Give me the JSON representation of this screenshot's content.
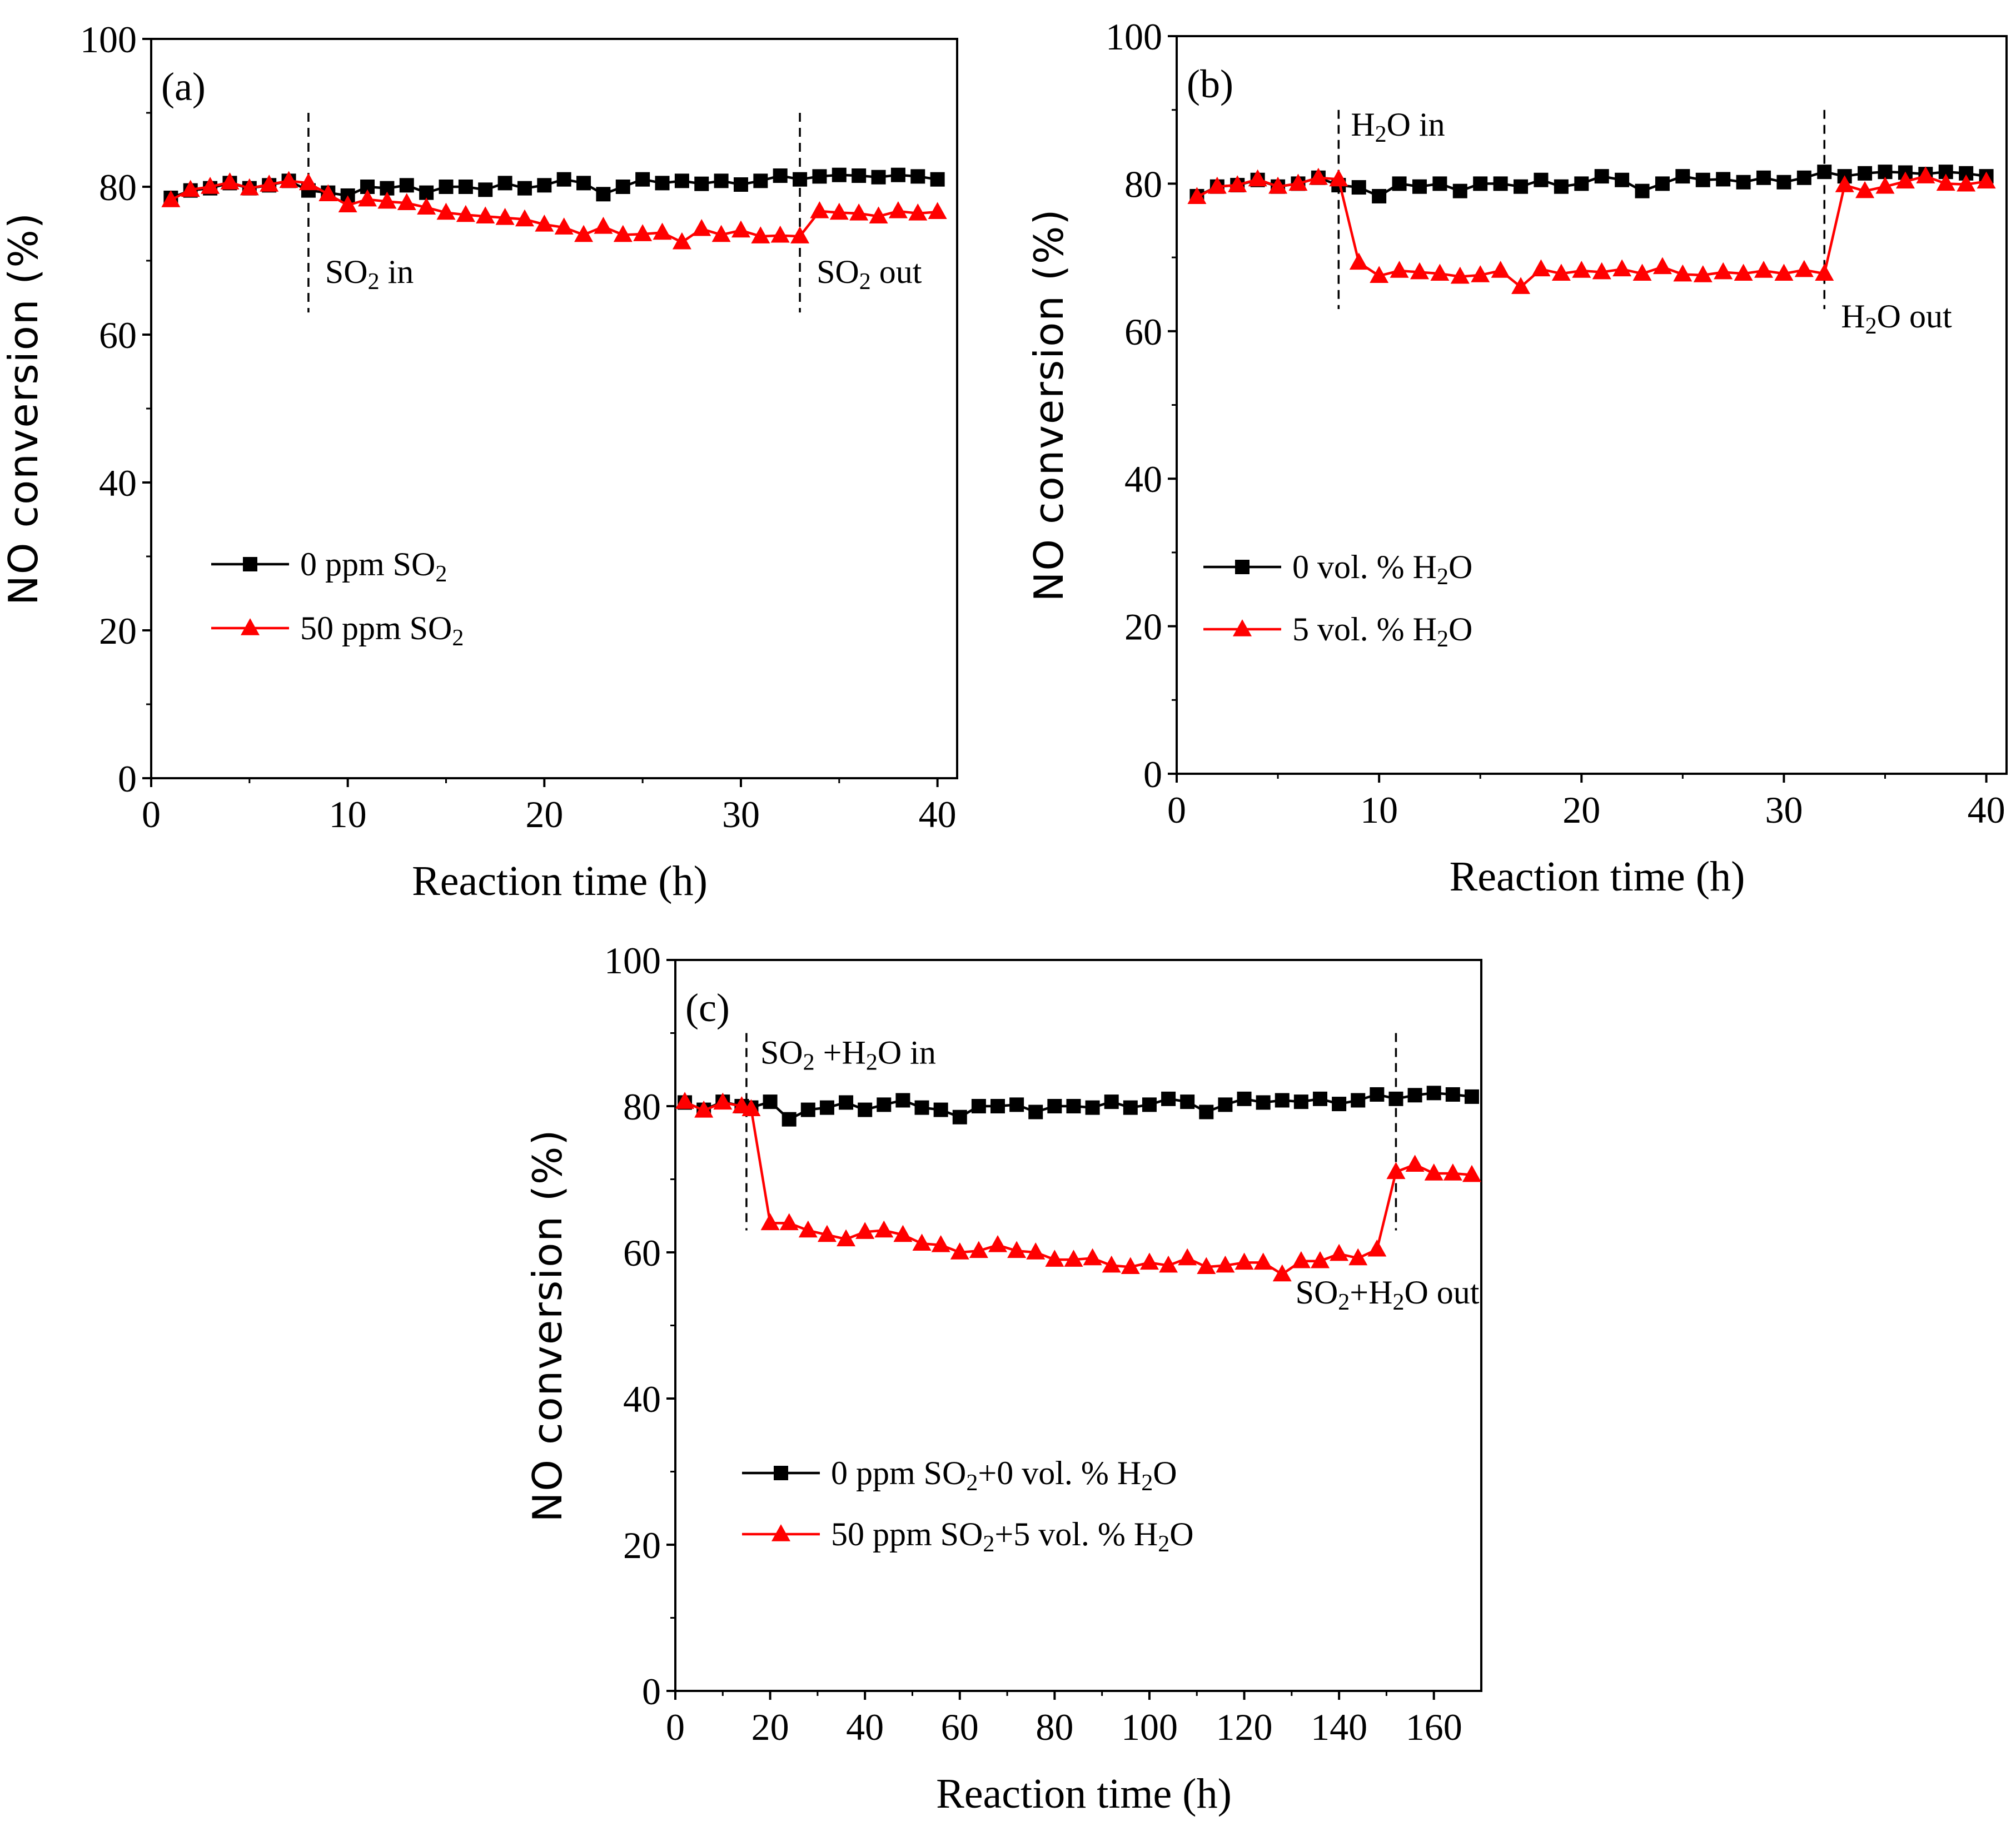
{
  "chart_data": [
    {
      "type": "line",
      "panel_label": "(a)",
      "xlabel": "Reaction time (h)",
      "ylabel": "NO conversion (%)",
      "xlim": [
        0,
        41
      ],
      "ylim": [
        0,
        100
      ],
      "xticks": [
        0,
        10,
        20,
        30,
        40
      ],
      "yticks": [
        0,
        20,
        40,
        60,
        80,
        100
      ],
      "xtick_labels": [
        "0",
        "10",
        "20",
        "30",
        "40"
      ],
      "ytick_labels": [
        "0",
        "20",
        "40",
        "60",
        "80",
        "100"
      ],
      "series": [
        {
          "name": "0 ppm SO2",
          "label_parts": [
            "0 ppm SO",
            "2",
            ""
          ],
          "color": "#000000",
          "marker": "square",
          "x": [
            1,
            2,
            3,
            4,
            5,
            6,
            7,
            8,
            9,
            10,
            11,
            12,
            13,
            14,
            15,
            16,
            17,
            18,
            19,
            20,
            21,
            22,
            23,
            24,
            25,
            26,
            27,
            28,
            29,
            30,
            31,
            32,
            33,
            34,
            35,
            36,
            37,
            38,
            39,
            40
          ],
          "y": [
            78.5,
            79.5,
            79.8,
            80.5,
            79.8,
            80.2,
            80.8,
            79.5,
            79.2,
            78.8,
            80,
            79.8,
            80.2,
            79.2,
            80,
            80,
            79.6,
            80.5,
            79.8,
            80.2,
            81,
            80.5,
            79,
            80,
            81,
            80.5,
            80.8,
            80.4,
            80.8,
            80.3,
            80.8,
            81.5,
            81,
            81.4,
            81.6,
            81.5,
            81.3,
            81.6,
            81.4,
            81
          ]
        },
        {
          "name": "50 ppm SO2",
          "label_parts": [
            "50  ppm SO",
            "2",
            ""
          ],
          "color": "#ff0000",
          "marker": "triangle",
          "x": [
            1,
            2,
            3,
            4,
            5,
            6,
            7,
            8,
            9,
            10,
            11,
            12,
            13,
            14,
            15,
            16,
            17,
            18,
            19,
            20,
            21,
            22,
            23,
            24,
            25,
            26,
            27,
            28,
            29,
            30,
            31,
            32,
            33,
            34,
            35,
            36,
            37,
            38,
            39,
            40
          ],
          "y": [
            78.2,
            79.6,
            80,
            80.6,
            79.8,
            80.3,
            80.8,
            80.5,
            79,
            77.5,
            78.3,
            78,
            77.8,
            77.2,
            76.5,
            76.2,
            76,
            75.8,
            75.6,
            74.9,
            74.5,
            73.5,
            74.6,
            73.5,
            73.6,
            73.8,
            72.5,
            74.3,
            73.5,
            74.1,
            73.3,
            73.4,
            73.3,
            76.7,
            76.5,
            76.4,
            76,
            76.7,
            76.4,
            76.6
          ]
        }
      ],
      "events": [
        {
          "x": 8,
          "label_parts": [
            "SO",
            "2",
            " in"
          ],
          "label_side": "right"
        },
        {
          "x": 33,
          "label_parts": [
            "SO",
            "2",
            " out"
          ],
          "label_side": "right"
        }
      ],
      "legend_position": "middle-left"
    },
    {
      "type": "line",
      "panel_label": "(b)",
      "xlabel": "Reaction time (h)",
      "ylabel": "NO conversion (%)",
      "xlim": [
        0,
        41
      ],
      "ylim": [
        0,
        100
      ],
      "xticks": [
        0,
        10,
        20,
        30,
        40
      ],
      "yticks": [
        0,
        20,
        40,
        60,
        80,
        100
      ],
      "xtick_labels": [
        "0",
        "10",
        "20",
        "30",
        "40"
      ],
      "ytick_labels": [
        "0",
        "20",
        "40",
        "60",
        "80",
        "100"
      ],
      "series": [
        {
          "name": "0 vol. % H2O",
          "label_parts": [
            "0 vol. % H",
            "2",
            "O"
          ],
          "color": "#000000",
          "marker": "square",
          "x": [
            1,
            2,
            3,
            4,
            5,
            6,
            7,
            8,
            9,
            10,
            11,
            12,
            13,
            14,
            15,
            16,
            17,
            18,
            19,
            20,
            21,
            22,
            23,
            24,
            25,
            26,
            27,
            28,
            29,
            30,
            31,
            32,
            33,
            34,
            35,
            36,
            37,
            38,
            39,
            40
          ],
          "y": [
            78.3,
            79.6,
            79.8,
            80.5,
            79.6,
            80,
            80.8,
            79.8,
            79.5,
            78.3,
            80,
            79.6,
            80,
            79,
            80,
            80,
            79.6,
            80.5,
            79.6,
            80,
            81,
            80.5,
            79,
            80,
            81,
            80.5,
            80.6,
            80.2,
            80.8,
            80.2,
            80.8,
            81.6,
            81,
            81.4,
            81.6,
            81.5,
            81.3,
            81.6,
            81.4,
            81
          ]
        },
        {
          "name": "5 vol. % H2O",
          "label_parts": [
            "5 vol. % H",
            "2",
            "O"
          ],
          "color": "#ff0000",
          "marker": "triangle",
          "x": [
            1,
            2,
            3,
            4,
            5,
            6,
            7,
            8,
            9,
            10,
            11,
            12,
            13,
            14,
            15,
            16,
            17,
            18,
            19,
            20,
            21,
            22,
            23,
            24,
            25,
            26,
            27,
            28,
            29,
            30,
            31,
            32,
            33,
            34,
            35,
            36,
            37,
            38,
            39,
            40
          ],
          "y": [
            78.2,
            79.6,
            79.8,
            80.6,
            79.6,
            80,
            80.8,
            80.6,
            69.3,
            67.5,
            68.2,
            68,
            67.8,
            67.4,
            67.6,
            68.2,
            66,
            68.4,
            67.8,
            68.2,
            68,
            68.4,
            67.8,
            68.7,
            67.7,
            67.6,
            68,
            67.8,
            68.2,
            67.8,
            68.3,
            67.8,
            79.8,
            79,
            79.6,
            80.3,
            81,
            80,
            79.9,
            80.3
          ]
        }
      ],
      "events": [
        {
          "x": 8,
          "label_parts": [
            "H",
            "2",
            "O in"
          ],
          "label_side": "right"
        },
        {
          "x": 32,
          "label_parts": [
            "H",
            "2",
            "O out"
          ],
          "label_side": "right"
        }
      ],
      "legend_position": "middle-left"
    },
    {
      "type": "line",
      "panel_label": "(c)",
      "xlabel": "Reaction time (h)",
      "ylabel": "NO conversion (%)",
      "xlim": [
        0,
        170
      ],
      "ylim": [
        0,
        100
      ],
      "xticks": [
        0,
        20,
        40,
        60,
        80,
        100,
        120,
        140,
        160
      ],
      "yticks": [
        0,
        20,
        40,
        60,
        80,
        100
      ],
      "xtick_labels": [
        "0",
        "20",
        "40",
        "60",
        "80",
        "100",
        "120",
        "140",
        "160"
      ],
      "ytick_labels": [
        "0",
        "20",
        "40",
        "60",
        "80",
        "100"
      ],
      "series": [
        {
          "name": "0 ppm SO2+0 vol. % H2O",
          "label_parts": [
            "0 ppm SO",
            "2",
            "+0 vol. % H",
            "2",
            "O"
          ],
          "color": "#000000",
          "marker": "square",
          "x": [
            2,
            6,
            10,
            14,
            16,
            20,
            24,
            28,
            32,
            36,
            40,
            44,
            48,
            52,
            56,
            60,
            64,
            68,
            72,
            76,
            80,
            84,
            88,
            92,
            96,
            100,
            104,
            108,
            112,
            116,
            120,
            124,
            128,
            132,
            136,
            140,
            144,
            148,
            152,
            156,
            160,
            164,
            168
          ],
          "y": [
            80.5,
            79.5,
            80.6,
            80,
            79.8,
            80.6,
            78.2,
            79.5,
            79.8,
            80.5,
            79.5,
            80.2,
            80.8,
            79.8,
            79.5,
            78.5,
            80,
            80,
            80.2,
            79.2,
            80,
            80,
            79.8,
            80.6,
            79.8,
            80.2,
            81,
            80.6,
            79.2,
            80.2,
            81,
            80.5,
            80.8,
            80.6,
            81,
            80.3,
            80.8,
            81.6,
            81,
            81.5,
            81.8,
            81.6,
            81.3
          ]
        },
        {
          "name": "50 ppm SO2+5 vol. % H2O",
          "label_parts": [
            "50 ppm SO",
            "2",
            "+5 vol. % H",
            "2",
            "O"
          ],
          "color": "#ff0000",
          "marker": "triangle",
          "x": [
            2,
            6,
            10,
            14,
            16,
            20,
            24,
            28,
            32,
            36,
            40,
            44,
            48,
            52,
            56,
            60,
            64,
            68,
            72,
            76,
            80,
            84,
            88,
            92,
            96,
            100,
            104,
            108,
            112,
            116,
            120,
            124,
            128,
            132,
            136,
            140,
            144,
            148,
            152,
            156,
            160,
            164,
            168
          ],
          "y": [
            80.6,
            79.4,
            80.5,
            80,
            79.6,
            64,
            64,
            63,
            62.4,
            61.8,
            62.8,
            63,
            62.4,
            61.2,
            61,
            60,
            60.2,
            61,
            60.2,
            60,
            59,
            59,
            59.2,
            58.2,
            58,
            58.6,
            58.2,
            59.2,
            58,
            58.2,
            58.6,
            58.6,
            57,
            58.8,
            58.8,
            59.8,
            59.2,
            60.4,
            71,
            72,
            70.8,
            70.8,
            70.6
          ]
        }
      ],
      "events": [
        {
          "x": 15,
          "label_parts": [
            "SO",
            "2",
            " +H",
            "2",
            "O in"
          ],
          "label_side": "right"
        },
        {
          "x": 152,
          "label_parts": [
            "SO",
            "2",
            "+H",
            "2",
            "O out"
          ],
          "label_side": "below-left"
        }
      ],
      "legend_position": "lower-left"
    }
  ]
}
